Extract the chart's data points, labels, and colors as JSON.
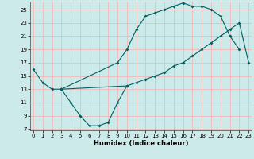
{
  "xlabel": "Humidex (Indice chaleur)",
  "background_color": "#cceaea",
  "grid_color": "#f0b8b8",
  "line_color": "#006060",
  "line1_x": [
    0,
    1,
    2,
    3,
    10,
    11,
    12,
    13,
    14,
    15,
    16,
    17,
    18,
    19,
    20,
    21,
    22,
    23
  ],
  "line1_y": [
    16,
    14,
    13,
    13,
    13.5,
    14,
    14.5,
    15,
    15.5,
    16.5,
    17,
    18,
    19,
    20,
    21,
    22,
    23,
    17
  ],
  "line2_x": [
    3,
    4,
    5,
    6,
    7,
    8,
    9,
    10
  ],
  "line2_y": [
    13,
    11,
    9,
    7.5,
    7.5,
    8,
    11,
    13.5
  ],
  "line3_x": [
    3,
    9,
    10,
    11,
    12,
    13,
    14,
    15,
    16,
    17,
    18,
    19,
    20,
    21,
    22
  ],
  "line3_y": [
    13,
    17,
    19,
    22,
    24,
    24.5,
    25,
    25.5,
    26,
    25.5,
    25.5,
    25,
    24,
    21,
    19
  ],
  "xlim": [
    0,
    23
  ],
  "ylim": [
    7,
    26
  ],
  "xticks": [
    0,
    1,
    2,
    3,
    4,
    5,
    6,
    7,
    8,
    9,
    10,
    11,
    12,
    13,
    14,
    15,
    16,
    17,
    18,
    19,
    20,
    21,
    22,
    23
  ],
  "yticks": [
    7,
    9,
    11,
    13,
    15,
    17,
    19,
    21,
    23,
    25
  ]
}
